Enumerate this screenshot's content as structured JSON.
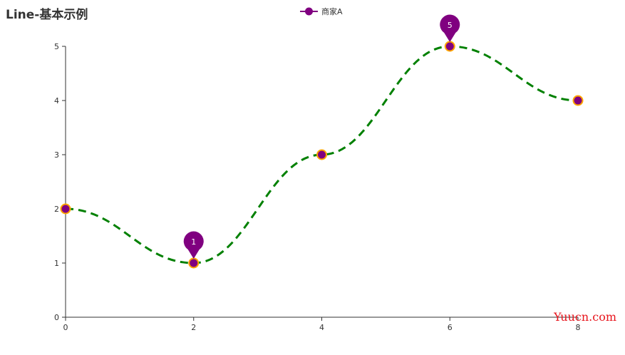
{
  "chart_data": {
    "type": "line",
    "title": "Line-基本示例",
    "x": [
      0,
      2,
      4,
      6,
      8
    ],
    "xlim": [
      0,
      8
    ],
    "ylim": [
      0,
      5
    ],
    "x_ticks": [
      "0",
      "2",
      "4",
      "6",
      "8"
    ],
    "y_ticks": [
      "0",
      "1",
      "2",
      "3",
      "4",
      "5"
    ],
    "series": [
      {
        "name": "商家A",
        "values": [
          2,
          1,
          3,
          5,
          4
        ],
        "line_color": "#008000",
        "line_style": "dashed",
        "smooth": true,
        "symbol_fill": "#800080",
        "symbol_border": "#ffa500"
      }
    ],
    "mark_points": [
      {
        "x": 2,
        "y": 1,
        "label": "1"
      },
      {
        "x": 6,
        "y": 5,
        "label": "5"
      }
    ],
    "legend_position": "top-center",
    "grid": false
  },
  "watermark": "Yuucn.com"
}
